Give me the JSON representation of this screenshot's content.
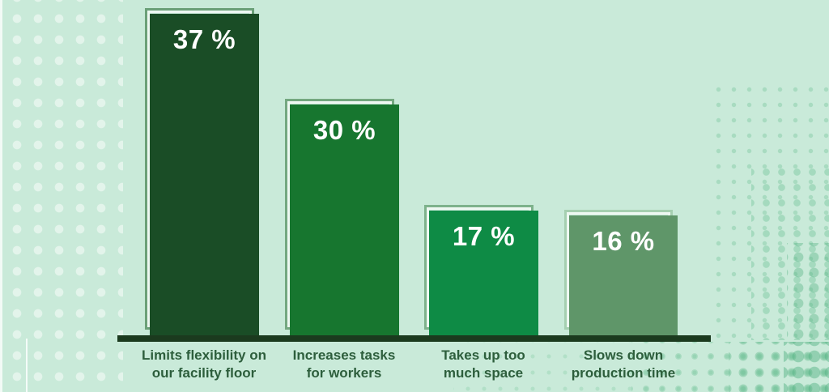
{
  "chart_data": {
    "type": "bar",
    "categories": [
      "Limits flexibility on our facility floor",
      "Increases tasks for workers",
      "Takes up too much space",
      "Slows down production time"
    ],
    "values": [
      37,
      30,
      17,
      16
    ],
    "value_labels": [
      "37 %",
      "30 %",
      "17 %",
      "16 %"
    ],
    "title": "",
    "xlabel": "",
    "ylabel": "",
    "ylim": [
      0,
      40
    ],
    "grid": false,
    "legend_position": "none",
    "orientation": "vertical"
  },
  "bars": [
    {
      "value": 37,
      "value_label": "37 %",
      "label_line1": "Limits flexibility on",
      "label_line2": "our facility floor",
      "fill_color": "#1a4d26",
      "outline_color": "#6ba078"
    },
    {
      "value": 30,
      "value_label": "30 %",
      "label_line1": "Increases tasks",
      "label_line2": "for workers",
      "fill_color": "#17762f",
      "outline_color": "#74a880"
    },
    {
      "value": 17,
      "value_label": "17 %",
      "label_line1": "Takes up too",
      "label_line2": "much space",
      "fill_color": "#0e8b45",
      "outline_color": "#7db28b"
    },
    {
      "value": 16,
      "value_label": "16 %",
      "label_line1": "Slows down",
      "label_line2": "production time",
      "fill_color": "#5f9669",
      "outline_color": "#a5cfb0"
    }
  ],
  "colors": {
    "background": "#c9ead9",
    "axis_line": "#1b3a1e",
    "value_text": "#ffffff",
    "category_text": "#2d5e3c",
    "inner_highlight": "#eef8f2",
    "left_dots": "#daf2e5",
    "right_dots": "#abdcc3"
  }
}
